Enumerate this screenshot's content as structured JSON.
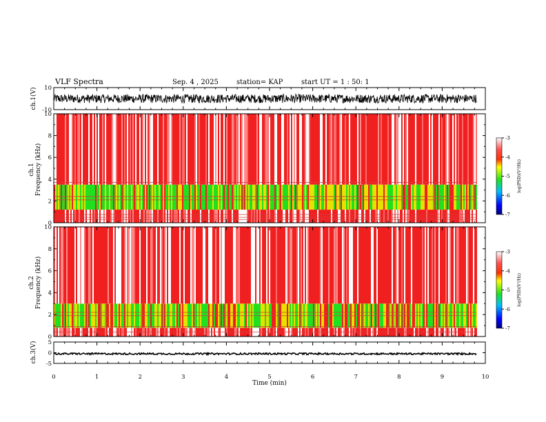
{
  "header": {
    "title": "VLF Spectra",
    "date": "Sep. 4 , 2025",
    "station": "station= KAP",
    "start": "start UT = 1 : 50: 1"
  },
  "colors": {
    "red": "#f02020",
    "yellow": "#e8e000",
    "green": "#20e020",
    "white": "#ffffff",
    "trace": "#000000"
  },
  "chart_data": [
    {
      "id": "ch1-waveform",
      "type": "line",
      "ylabel": "ch.1(V)",
      "ylim": [
        -10,
        10
      ],
      "yticks": [
        "10",
        "-10"
      ],
      "description_values": {
        "mean": 0,
        "amplitude_approx": 4
      }
    },
    {
      "id": "ch1-spectrogram",
      "type": "heatmap",
      "ylabel_line1": "ch.1",
      "ylabel_line2": "Frequency (kHz)",
      "ylim": [
        0,
        10
      ],
      "yticks": [
        "0",
        "2",
        "4",
        "6",
        "8",
        "10"
      ],
      "bands_khz": [
        {
          "from": 0.0,
          "to": 1.2,
          "level": "red-white"
        },
        {
          "from": 1.2,
          "to": 3.5,
          "level": "green-yellow"
        },
        {
          "from": 3.5,
          "to": 10.0,
          "level": "red-white"
        }
      ],
      "colorbar": {
        "label": "log(PSD)(V²/Hz)",
        "ticks": [
          "-3",
          "-4",
          "-5",
          "-6",
          "-7"
        ],
        "range": [
          -7,
          -3
        ]
      }
    },
    {
      "id": "ch2-spectrogram",
      "type": "heatmap",
      "ylabel_line1": "ch.2",
      "ylabel_line2": "Frequency (kHz)",
      "ylim": [
        0,
        10
      ],
      "yticks": [
        "0",
        "2",
        "4",
        "6",
        "8",
        "10"
      ],
      "bands_khz": [
        {
          "from": 0.0,
          "to": 0.8,
          "level": "red-white"
        },
        {
          "from": 0.8,
          "to": 3.0,
          "level": "green-yellow"
        },
        {
          "from": 3.0,
          "to": 10.0,
          "level": "red-white"
        }
      ],
      "colorbar": {
        "label": "log(PSD)(V²/Hz)",
        "ticks": [
          "-3",
          "-4",
          "-5",
          "-6",
          "-7"
        ],
        "range": [
          -7,
          -3
        ]
      }
    },
    {
      "id": "ch3-waveform",
      "type": "line",
      "ylabel": "ch.3(V)",
      "ylim": [
        -5,
        5
      ],
      "yticks": [
        "5",
        "0",
        "-5"
      ],
      "description_values": {
        "mean": -0.5,
        "amplitude_approx": 0.4
      }
    }
  ],
  "xaxis": {
    "label": "Time (min)",
    "xlim": [
      0,
      10
    ],
    "ticks": [
      "0",
      "1",
      "2",
      "3",
      "4",
      "5",
      "6",
      "7",
      "8",
      "9",
      "10"
    ],
    "data_end_min": 9.8
  }
}
